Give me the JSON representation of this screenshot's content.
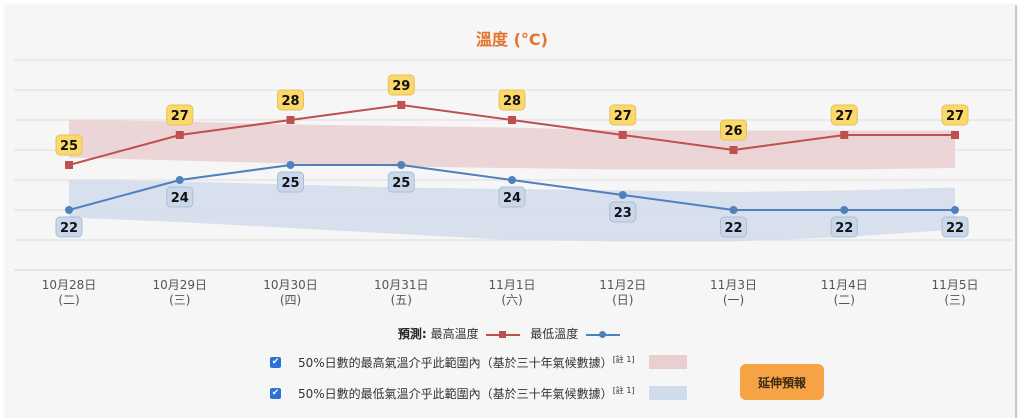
{
  "chart_title": "溫度 (°C)",
  "colors": {
    "title": "#e2742c",
    "max_line": "#c0504d",
    "min_line": "#4f81bd",
    "max_band": "#e9cfd0",
    "min_band": "#d1dcea",
    "max_label_bg": "#fbd86a",
    "min_label_bg": "#c8d8ea",
    "button": "#f5a344",
    "gridline": "#dcdcdc"
  },
  "x_labels": [
    {
      "date": "10月28日",
      "weekday": "(二)"
    },
    {
      "date": "10月29日",
      "weekday": "(三)"
    },
    {
      "date": "10月30日",
      "weekday": "(四)"
    },
    {
      "date": "10月31日",
      "weekday": "(五)"
    },
    {
      "date": "11月1日",
      "weekday": "(六)"
    },
    {
      "date": "11月2日",
      "weekday": "(日)"
    },
    {
      "date": "11月3日",
      "weekday": "(一)"
    },
    {
      "date": "11月4日",
      "weekday": "(二)"
    },
    {
      "date": "11月5日",
      "weekday": "(三)"
    }
  ],
  "legend": {
    "prefix": "預測:",
    "max_label": "最高溫度",
    "min_label": "最低溫度",
    "band_max_label": "50%日數的最高氣溫介乎此範圍內（基於三十年氣候數據）",
    "band_min_label": "50%日數的最低氣溫介乎此範圍內（基於三十年氣候數據）",
    "note": "[註 1]",
    "band_max_checked": true,
    "band_min_checked": true
  },
  "extend_button": "延伸預報",
  "chart_data": {
    "type": "line",
    "title": "溫度 (°C)",
    "xlabel": "",
    "ylabel": "°C",
    "categories": [
      "10月28日 (二)",
      "10月29日 (三)",
      "10月30日 (四)",
      "10月31日 (五)",
      "11月1日 (六)",
      "11月2日 (日)",
      "11月3日 (一)",
      "11月4日 (二)",
      "11月5日 (三)"
    ],
    "series": [
      {
        "name": "最高溫度",
        "values": [
          25,
          27,
          28,
          29,
          28,
          27,
          26,
          27,
          27
        ],
        "marker": "square",
        "color": "#c0504d"
      },
      {
        "name": "最低溫度",
        "values": [
          22,
          24,
          25,
          25,
          24,
          23,
          22,
          22,
          22
        ],
        "marker": "circle",
        "color": "#4f81bd"
      }
    ],
    "bands": [
      {
        "name": "50%日數的最高氣溫介乎此範圍內",
        "upper": [
          28.0,
          27.9,
          27.7,
          27.6,
          27.5,
          27.3,
          27.3,
          27.3,
          27.3
        ],
        "lower": [
          25.5,
          25.3,
          25.1,
          24.9,
          24.8,
          24.7,
          24.7,
          24.7,
          24.8
        ]
      },
      {
        "name": "50%日數的最低氣溫介乎此範圍內",
        "upper": [
          24.0,
          23.9,
          23.7,
          23.5,
          23.4,
          23.3,
          23.2,
          23.3,
          23.5
        ],
        "lower": [
          21.5,
          21.2,
          20.8,
          20.4,
          20.0,
          19.9,
          19.9,
          20.2,
          20.7
        ]
      }
    ],
    "ylim": [
      18,
      32
    ],
    "grid": true,
    "legend_position": "bottom"
  }
}
